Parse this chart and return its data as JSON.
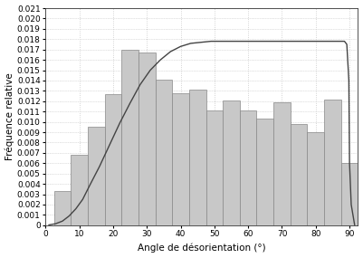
{
  "bar_centers": [
    5,
    10,
    15,
    20,
    25,
    30,
    35,
    40,
    45,
    50,
    55,
    60,
    65,
    70,
    75,
    80,
    85,
    90
  ],
  "bar_heights": [
    0.0033,
    0.0068,
    0.0095,
    0.0127,
    0.017,
    0.0167,
    0.0141,
    0.0128,
    0.0131,
    0.0111,
    0.0121,
    0.0111,
    0.0103,
    0.0119,
    0.0098,
    0.009,
    0.0122,
    0.006
  ],
  "bar_width": 5.0,
  "bar_color": "#c8c8c8",
  "bar_edgecolor": "#888888",
  "ylabel": "Fréquence relative",
  "xlabel": "Angle de désorientation (°)",
  "xlim": [
    0,
    92.5
  ],
  "ylim": [
    0,
    0.021
  ],
  "yticks": [
    0,
    0.001,
    0.002,
    0.003,
    0.004,
    0.005,
    0.006,
    0.007,
    0.008,
    0.009,
    0.01,
    0.011,
    0.012,
    0.013,
    0.014,
    0.015,
    0.016,
    0.017,
    0.018,
    0.019,
    0.02,
    0.021
  ],
  "xticks": [
    0,
    10,
    20,
    30,
    40,
    50,
    60,
    70,
    80,
    90
  ],
  "grid_color": "#c8c8c8",
  "line_color": "#444444",
  "background_color": "#ffffff",
  "curve_x": [
    1,
    3,
    5,
    7,
    9,
    11,
    13,
    16,
    19,
    22,
    25,
    28,
    31,
    34,
    37,
    40,
    43,
    46,
    49,
    52,
    55,
    58,
    61,
    64,
    66,
    68,
    70,
    72,
    74,
    76,
    78,
    80,
    82,
    84,
    86,
    87.5,
    88.5,
    89.2,
    89.8,
    90.0,
    90.5,
    91.5
  ],
  "curve_y": [
    3e-05,
    0.00015,
    0.0004,
    0.0009,
    0.0016,
    0.0025,
    0.0038,
    0.0057,
    0.0078,
    0.0099,
    0.0118,
    0.0136,
    0.015,
    0.016,
    0.0168,
    0.0173,
    0.0176,
    0.0177,
    0.0178,
    0.0178,
    0.0178,
    0.0178,
    0.0178,
    0.0178,
    0.0178,
    0.0178,
    0.0178,
    0.0178,
    0.0178,
    0.0178,
    0.0178,
    0.0178,
    0.0178,
    0.0178,
    0.0178,
    0.0178,
    0.0178,
    0.0175,
    0.014,
    0.006,
    0.002,
    5e-05
  ],
  "tick_fontsize": 6.5,
  "label_fontsize": 7.5
}
